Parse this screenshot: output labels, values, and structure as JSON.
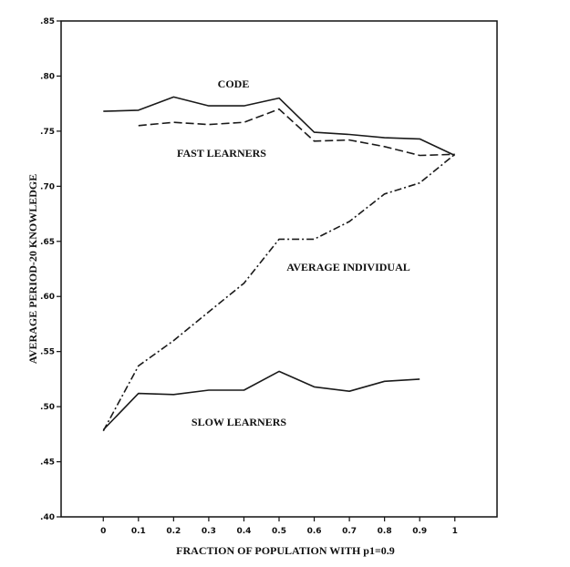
{
  "chart_data": {
    "type": "line",
    "xlabel": "FRACTION OF POPULATION WITH p1=0.9",
    "ylabel": "AVERAGE PERIOD-20 KNOWLEDGE",
    "xlim": [
      -0.12,
      1.12
    ],
    "ylim": [
      0.4,
      0.85
    ],
    "x_ticks": [
      0,
      0.1,
      0.2,
      0.3,
      0.4,
      0.5,
      0.6,
      0.7,
      0.8,
      0.9,
      1
    ],
    "x_tick_labels": [
      "0",
      "0.1",
      "0.2",
      "0.3",
      "0.4",
      "0.5",
      "0.6",
      "0.7",
      "0.8",
      "0.9",
      "1"
    ],
    "y_ticks": [
      0.4,
      0.45,
      0.5,
      0.55,
      0.6,
      0.65,
      0.7,
      0.75,
      0.8,
      0.85
    ],
    "y_tick_labels": [
      ".40",
      ".45",
      ".50",
      ".55",
      ".60",
      ".65",
      ".70",
      ".75",
      ".80",
      ".85"
    ],
    "grid": false,
    "series": [
      {
        "name": "CODE",
        "style": "solid",
        "x": [
          0,
          0.1,
          0.2,
          0.3,
          0.4,
          0.5,
          0.6,
          0.7,
          0.8,
          0.9,
          1
        ],
        "y": [
          0.768,
          0.769,
          0.781,
          0.773,
          0.773,
          0.78,
          0.749,
          0.747,
          0.744,
          0.743,
          0.728
        ]
      },
      {
        "name": "FAST LEARNERS",
        "style": "dashed",
        "x": [
          0.1,
          0.2,
          0.3,
          0.4,
          0.5,
          0.6,
          0.7,
          0.8,
          0.9,
          1
        ],
        "y": [
          0.755,
          0.758,
          0.756,
          0.758,
          0.77,
          0.741,
          0.742,
          0.736,
          0.728,
          0.729
        ]
      },
      {
        "name": "AVERAGE INDIVIDUAL",
        "style": "dashdot",
        "x": [
          0,
          0.1,
          0.2,
          0.3,
          0.4,
          0.5,
          0.6,
          0.7,
          0.8,
          0.9,
          1
        ],
        "y": [
          0.478,
          0.537,
          0.56,
          0.586,
          0.612,
          0.652,
          0.652,
          0.668,
          0.693,
          0.703,
          0.729
        ]
      },
      {
        "name": "SLOW LEARNERS",
        "style": "solid",
        "x": [
          0,
          0.1,
          0.2,
          0.3,
          0.4,
          0.5,
          0.6,
          0.7,
          0.8,
          0.9
        ],
        "y": [
          0.479,
          0.512,
          0.511,
          0.515,
          0.515,
          0.532,
          0.518,
          0.514,
          0.523,
          0.525
        ]
      }
    ]
  }
}
